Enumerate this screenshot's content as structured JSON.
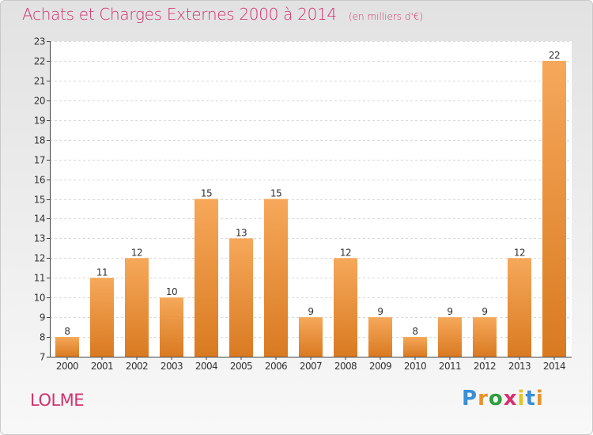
{
  "header": {
    "title": "Achats et Charges Externes 2000 à 2014",
    "unit": "(en milliers d'€)"
  },
  "footer": {
    "commune": "LOLME",
    "logo_text": "Proxiti",
    "logo_colors": [
      "#3a8fd6",
      "#e8922b",
      "#2f9e3c",
      "#d92f6e",
      "#e3c322",
      "#3a8fd6",
      "#e8922b"
    ]
  },
  "colors": {
    "accent": "#d2326e",
    "bar_light": "#f6a85a",
    "bar_dark": "#d97a21"
  },
  "chart_data": {
    "type": "bar",
    "title": "Achats et Charges Externes 2000 à 2014",
    "subtitle": "(en milliers d'€)",
    "categories": [
      "2000",
      "2001",
      "2002",
      "2003",
      "2004",
      "2005",
      "2006",
      "2007",
      "2008",
      "2009",
      "2010",
      "2011",
      "2012",
      "2013",
      "2014"
    ],
    "values": [
      8,
      11,
      12,
      10,
      15,
      13,
      15,
      9,
      12,
      9,
      8,
      9,
      9,
      12,
      22
    ],
    "ylim": [
      7,
      23
    ],
    "yticks": [
      7,
      8,
      9,
      10,
      11,
      12,
      13,
      14,
      15,
      16,
      17,
      18,
      19,
      20,
      21,
      22,
      23
    ],
    "grid": true,
    "data_labels": true
  }
}
